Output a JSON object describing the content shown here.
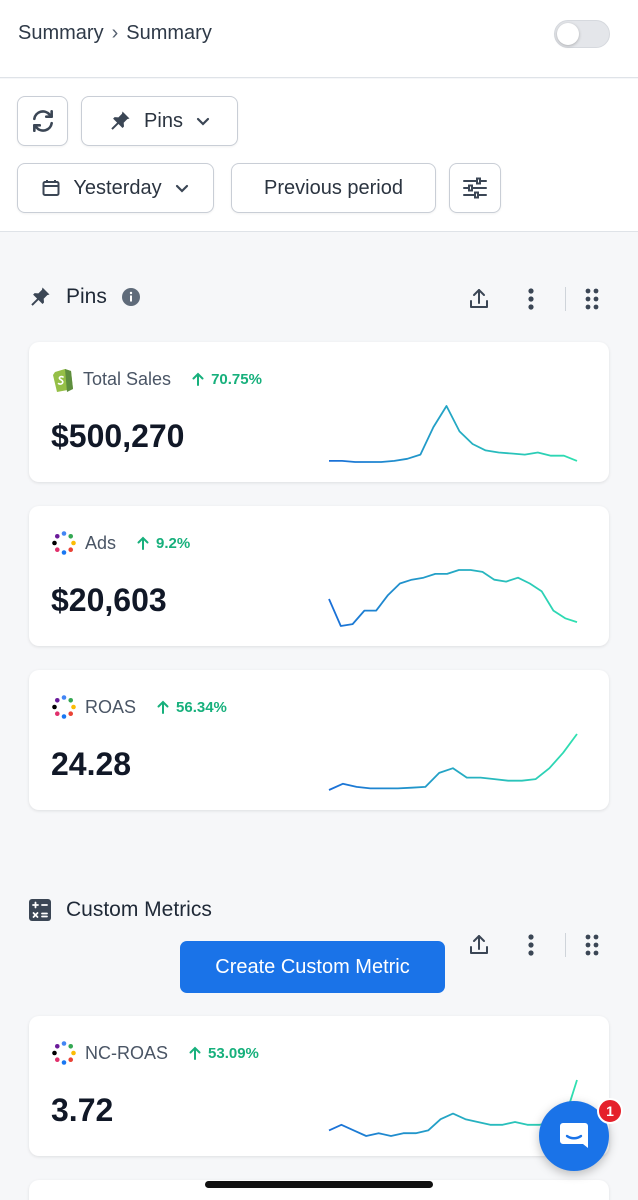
{
  "breadcrumb": {
    "first": "Summary",
    "second": "Summary"
  },
  "toolbar": {
    "pins_label": "Pins",
    "date_label": "Yesterday",
    "compare_label": "Previous period"
  },
  "pins_section": {
    "title": "Pins"
  },
  "pins_cards": [
    {
      "title": "Total Sales",
      "delta": "70.75%",
      "value": "$500,270",
      "icon": "shopify-icon",
      "trend": [
        6,
        6,
        5.5,
        5.5,
        5.5,
        6,
        7,
        9,
        22,
        32,
        20,
        14,
        11,
        10,
        9.5,
        9,
        10,
        8.5,
        8.5,
        6
      ]
    },
    {
      "title": "Ads",
      "delta": "9.2%",
      "value": "$20,603",
      "icon": "ads-dots-icon",
      "trend": [
        28,
        14,
        15,
        22,
        22,
        30,
        36,
        38,
        39,
        41,
        41,
        43,
        43,
        42,
        38,
        37,
        39,
        36,
        32,
        22,
        18,
        16
      ]
    },
    {
      "title": "ROAS",
      "delta": "56.34%",
      "value": "24.28",
      "icon": "ads-dots-icon",
      "trend": [
        4,
        8,
        6,
        5,
        5,
        5,
        5.5,
        6,
        15,
        18,
        12,
        12,
        11,
        10,
        10,
        11,
        18,
        28,
        40
      ]
    }
  ],
  "custom_section": {
    "title": "Custom Metrics",
    "create_label": "Create Custom Metric"
  },
  "custom_cards": [
    {
      "title": "NC-ROAS",
      "delta": "53.09%",
      "value": "3.72",
      "icon": "ads-dots-icon",
      "trend": [
        6,
        8,
        6,
        4,
        5,
        4,
        5,
        5,
        6,
        10,
        12,
        10,
        9,
        8,
        8,
        9,
        8,
        8,
        9,
        10,
        24
      ]
    }
  ],
  "chat": {
    "badge": "1"
  },
  "colors": {
    "accent": "#1a73e8",
    "positive": "#17b07c",
    "line_start": "#1a6fd8",
    "line_end": "#2fe0b0"
  }
}
